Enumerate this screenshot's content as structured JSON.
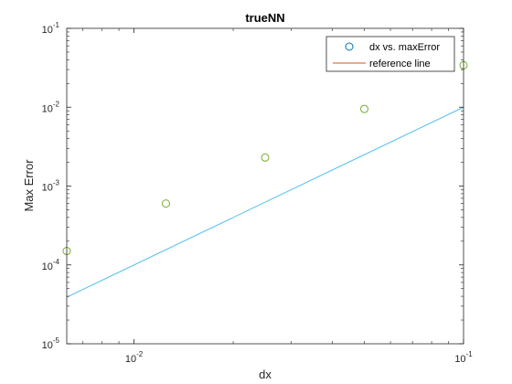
{
  "chart_data": {
    "type": "scatter",
    "title": "trueNN",
    "xlabel": "dx",
    "ylabel": "Max Error",
    "x_scale": "log",
    "y_scale": "log",
    "xlim": [
      0.00625,
      0.1
    ],
    "ylim": [
      1e-05,
      0.1
    ],
    "grid": false,
    "legend_position": "top-right",
    "x_ticks": [
      {
        "value": 0.01,
        "base": "10",
        "exp": "-2"
      },
      {
        "value": 0.1,
        "base": "10",
        "exp": "-1"
      }
    ],
    "y_ticks": [
      {
        "value": 1e-05,
        "base": "10",
        "exp": "-5"
      },
      {
        "value": 0.0001,
        "base": "10",
        "exp": "-4"
      },
      {
        "value": 0.001,
        "base": "10",
        "exp": "-3"
      },
      {
        "value": 0.01,
        "base": "10",
        "exp": "-2"
      },
      {
        "value": 0.1,
        "base": "10",
        "exp": "-1"
      }
    ],
    "series": [
      {
        "name": "dx vs. maxError",
        "kind": "scatter",
        "marker": "circle",
        "legend_color": "#0072BD",
        "point_color": "#77AC30",
        "x": [
          0.00625,
          0.0125,
          0.025,
          0.05,
          0.1
        ],
        "y": [
          0.00015,
          0.0006,
          0.0023,
          0.0095,
          0.034
        ]
      },
      {
        "name": "reference line",
        "kind": "line",
        "legend_color": "#D95319",
        "line_color": "#4DBEEE",
        "x": [
          0.00625,
          0.1
        ],
        "y": [
          3.9e-05,
          0.01
        ]
      }
    ]
  }
}
